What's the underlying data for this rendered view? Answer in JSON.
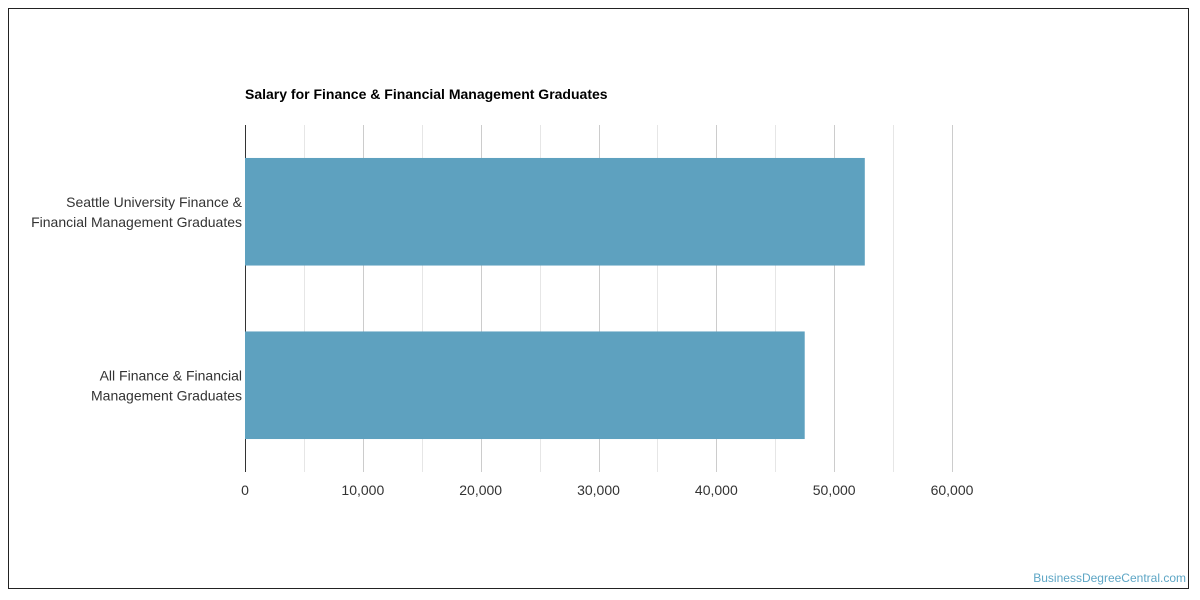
{
  "chart_data": {
    "type": "bar",
    "orientation": "horizontal",
    "title": "Salary for Finance & Financial Management Graduates",
    "categories": [
      [
        "Seattle University Finance &",
        "Financial Management Graduates"
      ],
      [
        "All Finance & Financial",
        "Management Graduates"
      ]
    ],
    "values": [
      52600,
      47500
    ],
    "xlim": [
      0,
      60000
    ],
    "ticks": [
      0,
      10000,
      20000,
      30000,
      40000,
      50000,
      60000
    ],
    "tick_labels": [
      "0",
      "10,000",
      "20,000",
      "30,000",
      "40,000",
      "50,000",
      "60,000"
    ],
    "xlabel": "",
    "ylabel": "",
    "grid": true,
    "bar_color": "#5ea1bf",
    "grid_color": "#cccccc",
    "minor_grid_color": "#e6e6e6"
  },
  "footer": {
    "watermark": "BusinessDegreeCentral.com"
  }
}
